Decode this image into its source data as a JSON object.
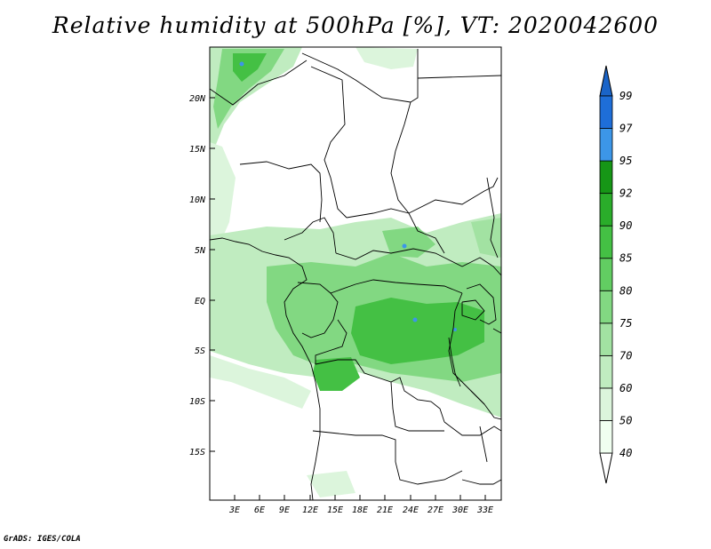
{
  "title": "Relative humidity at 500hPa [%], VT: 2020042600",
  "credit": "GrADS: IGES/COLA",
  "map": {
    "lat_labels": [
      "20N",
      "15N",
      "10N",
      "5N",
      "EQ",
      "5S",
      "10S",
      "15S"
    ],
    "lon_labels": [
      "3E",
      "6E",
      "9E",
      "12E",
      "15E",
      "18E",
      "21E",
      "24E",
      "27E",
      "30E",
      "33E"
    ]
  },
  "colorbar": {
    "levels": [
      "40",
      "50",
      "60",
      "70",
      "75",
      "80",
      "85",
      "90",
      "92",
      "95",
      "97",
      "99"
    ],
    "colors": [
      "#f0fff0",
      "#dcf5dc",
      "#c0ecc0",
      "#a2e2a2",
      "#82d882",
      "#62cd62",
      "#44c044",
      "#2aad2a",
      "#169616",
      "#3c96e8",
      "#1e6ed8",
      "#1450b4"
    ],
    "below_color": "#ffffff",
    "above_color": "#1a64c8"
  },
  "colors": {
    "coast": "#000000",
    "frame": "#000000"
  }
}
